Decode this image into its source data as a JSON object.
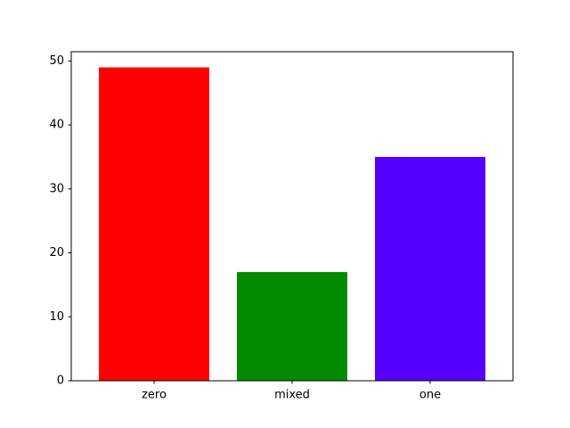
{
  "chart_data": {
    "type": "bar",
    "categories": [
      "zero",
      "mixed",
      "one"
    ],
    "values": [
      49,
      17,
      35
    ],
    "colors": [
      "#ff0000",
      "#008b00",
      "#5500ff"
    ],
    "title": "",
    "xlabel": "",
    "ylabel": "",
    "ylim": [
      0,
      51.45
    ],
    "yticks": [
      0,
      10,
      20,
      30,
      40,
      50
    ],
    "grid": false,
    "legend": null
  }
}
